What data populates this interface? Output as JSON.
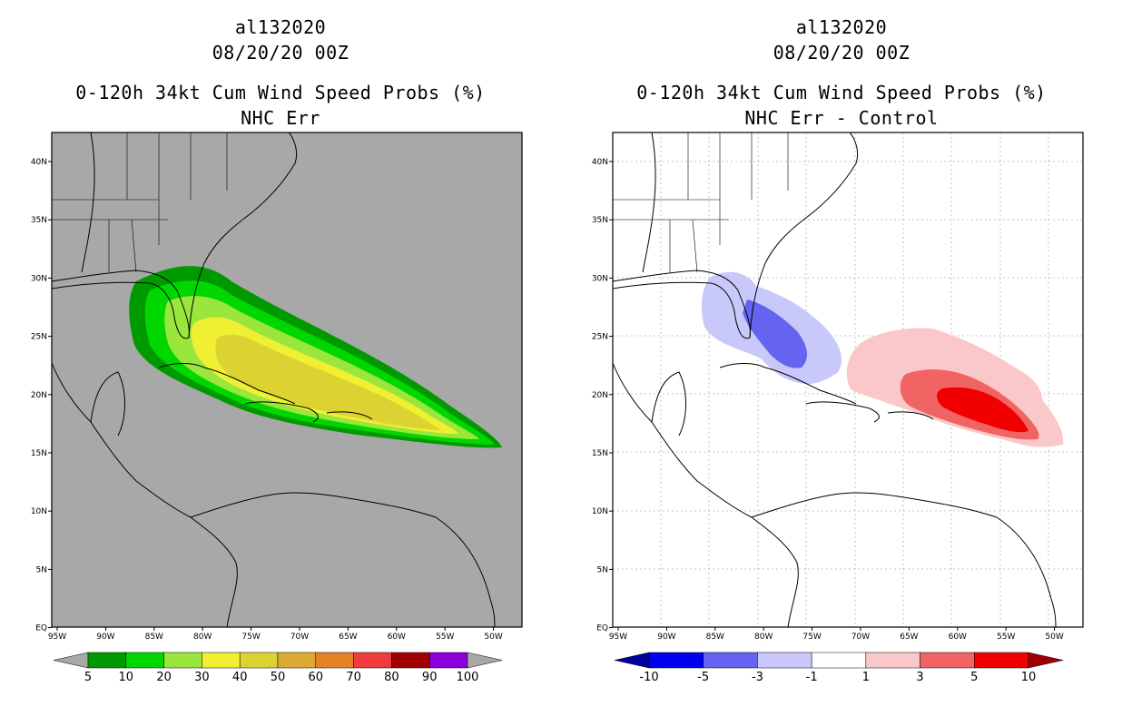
{
  "left": {
    "storm_id": "al132020",
    "date": "08/20/20 00Z",
    "title": "0-120h 34kt Cum Wind Speed Probs (%)",
    "subtitle": "NHC Err",
    "background_color": "#a8a8a8",
    "colorbar": {
      "colors": [
        "#009a00",
        "#00d700",
        "#9be63c",
        "#f0f032",
        "#dcd232",
        "#dcaa32",
        "#e68228",
        "#f03c3c",
        "#a00000",
        "#8c00dc"
      ],
      "labels": [
        "5",
        "10",
        "20",
        "30",
        "40",
        "50",
        "60",
        "70",
        "80",
        "90",
        "100"
      ]
    }
  },
  "right": {
    "storm_id": "al132020",
    "date": "08/20/20 00Z",
    "title": "0-120h 34kt Cum Wind Speed Probs (%)",
    "subtitle": "NHC Err - Control",
    "background_color": "#ffffff",
    "colorbar": {
      "colors": [
        "#0000a0",
        "#0000f0",
        "#6464f0",
        "#c8c8fa",
        "#ffffff",
        "#fac8c8",
        "#f06464",
        "#f00000",
        "#a00000"
      ],
      "labels": [
        "-10",
        "-5",
        "-3",
        "-1",
        "1",
        "3",
        "5",
        "10"
      ]
    }
  },
  "axes": {
    "lat_ticks": [
      "40N",
      "35N",
      "30N",
      "25N",
      "20N",
      "15N",
      "10N",
      "5N",
      "EQ"
    ],
    "lon_ticks": [
      "95W",
      "90W",
      "85W",
      "80W",
      "75W",
      "70W",
      "65W",
      "60W",
      "55W",
      "50W"
    ]
  }
}
